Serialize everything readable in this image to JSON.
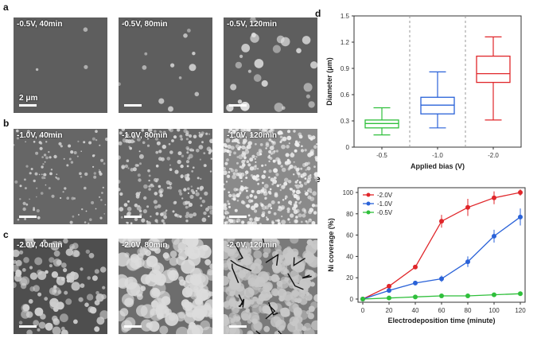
{
  "panels": {
    "a": {
      "label": "a",
      "captions": [
        "-0.5V, 40min",
        "-0.5V, 80min",
        "-0.5V, 120min"
      ],
      "scalebar": "2 μm"
    },
    "b": {
      "label": "b",
      "captions": [
        "-1.0V, 40min",
        "-1.0V, 80min",
        "-1.0V, 120min"
      ]
    },
    "c": {
      "label": "c",
      "captions": [
        "-2.0V, 40min",
        "-2.0V, 80min",
        "-2.0V, 120min"
      ]
    },
    "d": {
      "label": "d"
    },
    "e": {
      "label": "e"
    }
  },
  "chart_data": [
    {
      "panel": "d",
      "type": "box",
      "xlabel": "Applied bias (V)",
      "ylabel": "Diameter (μm)",
      "ylim": [
        0,
        1.5
      ],
      "yticks": [
        "0",
        "0.3",
        "0.6",
        "0.9",
        "1.2",
        "1.5"
      ],
      "categories": [
        "-0.5",
        "-1.0",
        "-2.0"
      ],
      "boxes": [
        {
          "category": "-0.5",
          "min": 0.14,
          "q1": 0.22,
          "median": 0.27,
          "q3": 0.31,
          "max": 0.45,
          "color": "#2fbf3b"
        },
        {
          "category": "-1.0",
          "min": 0.22,
          "q1": 0.38,
          "median": 0.48,
          "q3": 0.57,
          "max": 0.86,
          "color": "#2a62d8"
        },
        {
          "category": "-2.0",
          "min": 0.31,
          "q1": 0.74,
          "median": 0.84,
          "q3": 1.04,
          "max": 1.26,
          "color": "#e0262a"
        }
      ],
      "grid": false
    },
    {
      "panel": "e",
      "type": "line",
      "xlabel": "Electrodeposition time (minute)",
      "ylabel": "Ni coverage (%)",
      "xlim": [
        0,
        120
      ],
      "ylim": [
        0,
        100
      ],
      "xticks": [
        "0",
        "20",
        "40",
        "60",
        "80",
        "100",
        "120"
      ],
      "yticks": [
        "0",
        "20",
        "40",
        "60",
        "80",
        "100"
      ],
      "x": [
        0,
        20,
        40,
        60,
        80,
        100,
        120
      ],
      "legend_position": "top-left",
      "series": [
        {
          "name": "-2.0V",
          "color": "#e0262a",
          "values": [
            0,
            12,
            30,
            73,
            86,
            95,
            100
          ],
          "errors": [
            1,
            2,
            2,
            6,
            8,
            6,
            3
          ]
        },
        {
          "name": "-1.0V",
          "color": "#2a62d8",
          "values": [
            0,
            8,
            15,
            19,
            35,
            59,
            77
          ],
          "errors": [
            1,
            1,
            2,
            3,
            5,
            6,
            8
          ]
        },
        {
          "name": "-0.5V",
          "color": "#2fbf3b",
          "values": [
            0,
            1,
            2,
            3,
            3,
            4,
            5
          ],
          "errors": [
            0.5,
            0.5,
            0.5,
            0.5,
            0.5,
            0.5,
            0.5
          ]
        }
      ],
      "grid": false
    }
  ]
}
